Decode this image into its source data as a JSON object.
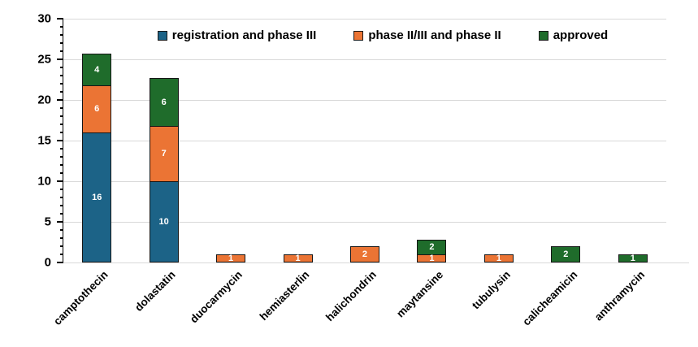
{
  "chart_data": {
    "type": "bar",
    "stacked": true,
    "title": "",
    "xlabel": "",
    "ylabel": "",
    "categories": [
      "camptothecin",
      "dolastatin",
      "duocarmycin",
      "hemiasterlin",
      "halichondrin",
      "maytansine",
      "tubulysin",
      "calicheamicin",
      "anthramycin"
    ],
    "series": [
      {
        "name": "registration and phase III",
        "color": "#1C6387",
        "values": [
          16,
          10,
          0,
          0,
          0,
          0,
          0,
          0,
          0
        ]
      },
      {
        "name": "phase II/III and phase II",
        "color": "#EB7434",
        "values": [
          6,
          7,
          1,
          1,
          2,
          1,
          1,
          0,
          0
        ]
      },
      {
        "name": "approved",
        "color": "#1F6C2B",
        "values": [
          4,
          6,
          0,
          0,
          0,
          2,
          0,
          2,
          1
        ]
      }
    ],
    "totals": [
      26,
      23,
      1,
      1,
      2,
      3,
      1,
      2,
      1
    ],
    "ylim": [
      0,
      30
    ],
    "ytick_step": 5,
    "minor_tick_step": 1,
    "ytick_labels": [
      "0",
      "5",
      "10",
      "15",
      "20",
      "25",
      "30"
    ],
    "grid": true,
    "legend_position": "top",
    "bar_labels_shown": true,
    "colors": {
      "background": "#ffffff",
      "grid": "#d9d9d9",
      "axis": "#000000",
      "bar_border": "#161616",
      "bar_label_text": "#ffffff",
      "tick_label_text": "#000000"
    }
  }
}
